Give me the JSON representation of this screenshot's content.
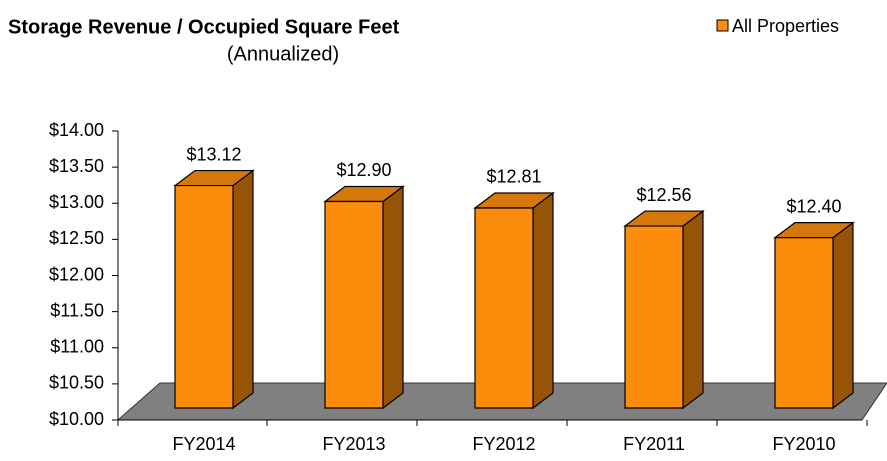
{
  "chart_data": {
    "type": "bar3d",
    "title": "Storage Revenue / Occupied Square Feet",
    "subtitle": "(Annualized)",
    "categories": [
      "FY2014",
      "FY2013",
      "FY2012",
      "FY2011",
      "FY2010"
    ],
    "series": [
      {
        "name": "All Properties",
        "color": "#fb8c0c",
        "values": [
          13.12,
          12.9,
          12.81,
          12.56,
          12.4
        ],
        "value_labels": [
          "$13.12",
          "$12.90",
          "$12.81",
          "$12.56",
          "$12.40"
        ]
      }
    ],
    "ylim": [
      10,
      14
    ],
    "yticks": [
      {
        "value": 10,
        "label": "$10.00"
      },
      {
        "value": 10.5,
        "label": "$10.50"
      },
      {
        "value": 11,
        "label": "$11.00"
      },
      {
        "value": 11.5,
        "label": "$11.50"
      },
      {
        "value": 12,
        "label": "$12.00"
      },
      {
        "value": 12.5,
        "label": "$12.50"
      },
      {
        "value": 13,
        "label": "$13.00"
      },
      {
        "value": 13.5,
        "label": "$13.50"
      },
      {
        "value": 14,
        "label": "$14.00"
      }
    ],
    "legend": "top-right"
  }
}
